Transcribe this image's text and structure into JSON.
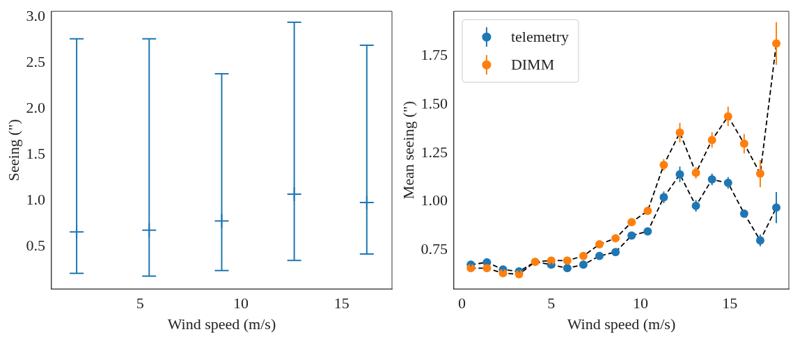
{
  "chart_data": [
    {
      "type": "scatter",
      "xlabel": "Wind speed (m/s)",
      "ylabel": "Seeing (\")",
      "x": [
        1.85,
        5.45,
        9.05,
        12.65,
        16.25
      ],
      "xlim": [
        0.6,
        17.5
      ],
      "xticks": [
        5,
        10,
        15
      ],
      "ylim": [
        0.04,
        3.06
      ],
      "yticks": [
        0.5,
        {
          "value": 1,
          "label": "1.0"
        },
        1.5,
        {
          "value": 2,
          "label": "2.0"
        },
        2.5,
        {
          "value": 3,
          "label": "3.0"
        }
      ],
      "grid": false,
      "series": [
        {
          "color": "#1f77b4",
          "marker": "cross",
          "values": [
            0.66,
            0.68,
            0.78,
            1.07,
            0.98
          ],
          "errors": [
            [
              0.21,
              2.76
            ],
            [
              0.18,
              2.76
            ],
            [
              0.24,
              2.38
            ],
            [
              0.35,
              2.94
            ],
            [
              0.42,
              2.69
            ]
          ]
        }
      ]
    },
    {
      "type": "scatter",
      "xlabel": "Wind speed (m/s)",
      "ylabel": "Mean seeing (\")",
      "x": [
        0.5,
        1.4,
        2.3,
        3.2,
        4.1,
        5.0,
        5.9,
        6.8,
        7.7,
        8.6,
        9.5,
        10.4,
        11.3,
        12.2,
        13.1,
        14.0,
        14.9,
        15.8,
        16.7,
        17.6
      ],
      "xlim": [
        -0.45,
        18.3
      ],
      "xticks": [
        0,
        5,
        10,
        15
      ],
      "ylim": [
        0.55,
        1.98
      ],
      "yticks": [
        0.75,
        {
          "value": 1,
          "label": "1.00"
        },
        1.25,
        {
          "value": 1.5,
          "label": "1.50"
        },
        1.75
      ],
      "grid": false,
      "legend": "top left",
      "marker": "circle",
      "series": [
        {
          "type": "line",
          "color": "#000000",
          "line_style": "dashed",
          "marker": "none",
          "values": [
            0.675,
            0.687,
            0.65,
            0.64,
            0.69,
            0.675,
            0.657,
            0.675,
            0.72,
            0.74,
            0.825,
            0.846,
            1.022,
            1.14,
            0.978,
            1.114,
            1.096,
            0.938,
            0.8,
            0.969
          ]
        },
        {
          "type": "line",
          "color": "#000000",
          "line_style": "dashed",
          "marker": "none",
          "values": [
            0.657,
            0.657,
            0.631,
            0.626,
            0.69,
            0.696,
            0.696,
            0.72,
            0.78,
            0.811,
            0.894,
            0.952,
            1.189,
            1.355,
            1.148,
            1.317,
            1.439,
            1.298,
            1.144,
            1.814
          ]
        },
        {
          "name": "telemetry",
          "color": "#1f77b4",
          "values": [
            0.675,
            0.687,
            0.65,
            0.64,
            null,
            0.675,
            0.657,
            0.675,
            0.72,
            0.74,
            0.825,
            0.846,
            1.022,
            1.14,
            0.978,
            1.114,
            1.096,
            0.938,
            0.8,
            0.969
          ],
          "errors": [
            0.01,
            0.01,
            0.01,
            0.01,
            null,
            0.01,
            0.01,
            0.01,
            0.01,
            0.01,
            0.01,
            0.01,
            0.03,
            0.04,
            0.03,
            0.03,
            0.03,
            0.02,
            0.03,
            0.08
          ]
        },
        {
          "name": "DIMM",
          "color": "#ff7f0e",
          "values": [
            0.657,
            0.657,
            0.631,
            0.626,
            0.69,
            0.696,
            0.696,
            0.72,
            0.78,
            0.811,
            0.894,
            0.952,
            1.189,
            1.355,
            1.148,
            1.317,
            1.439,
            1.298,
            1.144,
            1.814
          ],
          "errors": [
            0.01,
            0.01,
            0.01,
            0.01,
            null,
            0.01,
            0.01,
            0.01,
            0.01,
            0.01,
            0.01,
            0.01,
            0.03,
            0.05,
            0.03,
            0.04,
            0.05,
            0.05,
            0.07,
            0.11
          ]
        }
      ]
    }
  ]
}
